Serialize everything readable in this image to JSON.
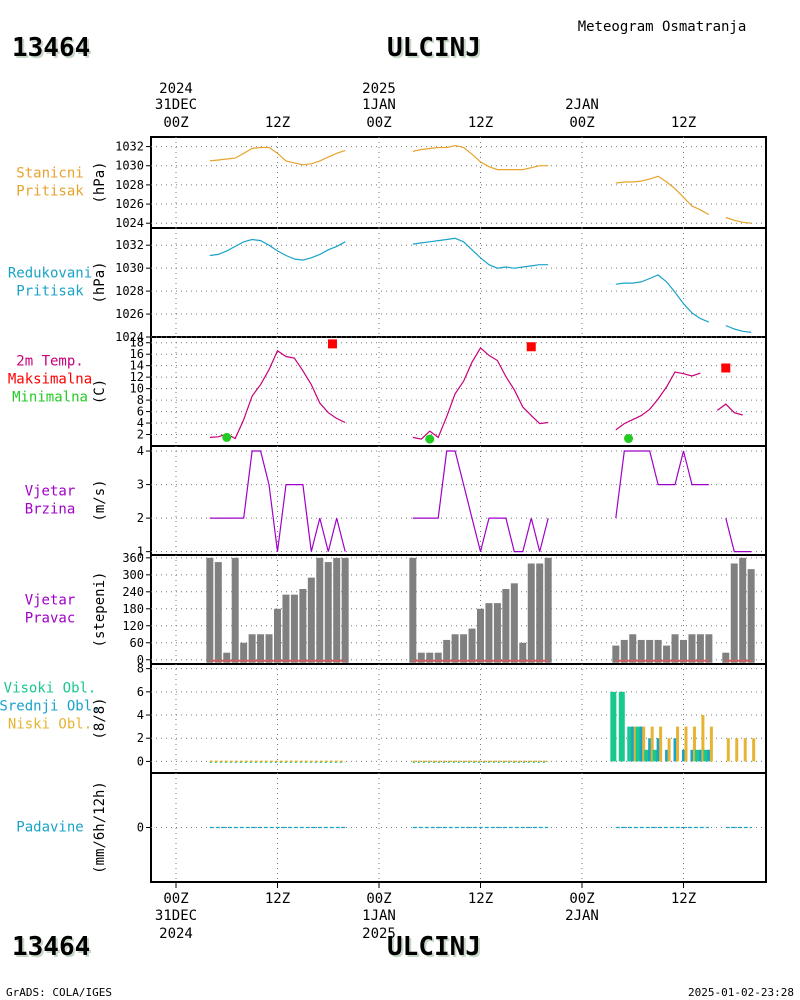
{
  "header": {
    "station_id": "13464",
    "station_name": "ULCINJ",
    "subtitle": "Meteogram Osmatranja"
  },
  "footer": {
    "station_id": "13464",
    "station_name": "ULCINJ",
    "credit": "GrADS: COLA/IGES",
    "timestamp": "2025-01-02-23:28"
  },
  "time_axis": {
    "top_labels": [
      {
        "lines": [
          "2024",
          "31DEC",
          "00Z"
        ],
        "hour": 0
      },
      {
        "lines": [
          "12Z"
        ],
        "hour": 12
      },
      {
        "lines": [
          "2025",
          "1JAN",
          "00Z"
        ],
        "hour": 24
      },
      {
        "lines": [
          "12Z"
        ],
        "hour": 36
      },
      {
        "lines": [
          "2JAN",
          "00Z"
        ],
        "hour": 48
      },
      {
        "lines": [
          "12Z"
        ],
        "hour": 60
      }
    ],
    "bottom_labels": [
      {
        "lines": [
          "00Z",
          "31DEC",
          "2024"
        ],
        "hour": 0
      },
      {
        "lines": [
          "12Z"
        ],
        "hour": 12
      },
      {
        "lines": [
          "00Z",
          "1JAN",
          "2025"
        ],
        "hour": 24
      },
      {
        "lines": [
          "12Z"
        ],
        "hour": 36
      },
      {
        "lines": [
          "00Z",
          "2JAN"
        ],
        "hour": 48
      },
      {
        "lines": [
          "12Z"
        ],
        "hour": 60
      }
    ]
  },
  "colors": {
    "station_pressure": "#e6a32e",
    "reduced_pressure": "#1aa3c8",
    "temperature": "#c8007a",
    "tmax": "#ff0000",
    "tmin": "#22cc22",
    "wind_speed": "#a000c8",
    "wind_dir_bar": "#808080",
    "wind_dir_base": "#d06060",
    "high_cloud": "#19c88c",
    "mid_cloud": "#1aa3c8",
    "low_cloud": "#e6b432",
    "precip": "#1aa3c8"
  },
  "chart_data": [
    {
      "type": "line",
      "panel": "station_pressure",
      "label_lines": [
        "Stanicni",
        "Pritisak"
      ],
      "ylabel": "(hPa)",
      "yticks": [
        1024,
        1026,
        1028,
        1030,
        1032
      ],
      "ylim": [
        1023.5,
        1033
      ],
      "segments": [
        [
          [
            4,
            1030.5
          ],
          [
            5,
            1030.6
          ],
          [
            6,
            1030.7
          ],
          [
            7,
            1030.8
          ],
          [
            8,
            1031.3
          ],
          [
            9,
            1031.8
          ],
          [
            10,
            1031.9
          ],
          [
            11,
            1031.9
          ],
          [
            12,
            1031.3
          ],
          [
            13,
            1030.5
          ],
          [
            14,
            1030.3
          ],
          [
            15,
            1030.1
          ],
          [
            16,
            1030.2
          ],
          [
            17,
            1030.5
          ],
          [
            18,
            1030.9
          ],
          [
            19,
            1031.3
          ],
          [
            20,
            1031.6
          ]
        ],
        [
          [
            28,
            1031.5
          ],
          [
            29,
            1031.7
          ],
          [
            30,
            1031.8
          ],
          [
            31,
            1031.9
          ],
          [
            32,
            1031.9
          ],
          [
            33,
            1032.1
          ],
          [
            34,
            1031.9
          ],
          [
            35,
            1031.2
          ],
          [
            36,
            1030.4
          ],
          [
            37,
            1029.9
          ],
          [
            38,
            1029.6
          ],
          [
            39,
            1029.6
          ],
          [
            40,
            1029.6
          ],
          [
            41,
            1029.6
          ],
          [
            42,
            1029.8
          ],
          [
            43,
            1030.0
          ],
          [
            44,
            1030.0
          ]
        ],
        [
          [
            52,
            1028.2
          ],
          [
            53,
            1028.3
          ],
          [
            54,
            1028.3
          ],
          [
            55,
            1028.4
          ],
          [
            56,
            1028.6
          ],
          [
            57,
            1028.9
          ],
          [
            58,
            1028.3
          ],
          [
            59,
            1027.6
          ],
          [
            60,
            1026.7
          ],
          [
            61,
            1025.8
          ],
          [
            62,
            1025.4
          ],
          [
            63,
            1024.9
          ]
        ],
        [
          [
            65,
            1024.6
          ],
          [
            66,
            1024.3
          ],
          [
            67,
            1024.1
          ],
          [
            68,
            1024.0
          ]
        ]
      ]
    },
    {
      "type": "line",
      "panel": "reduced_pressure",
      "label_lines": [
        "Redukovani",
        "Pritisak"
      ],
      "ylabel": "(hPa)",
      "yticks": [
        1024,
        1026,
        1028,
        1030,
        1032
      ],
      "ylim": [
        1024,
        1033.5
      ],
      "segments": [
        [
          [
            4,
            1031.1
          ],
          [
            5,
            1031.2
          ],
          [
            6,
            1031.5
          ],
          [
            7,
            1031.9
          ],
          [
            8,
            1032.3
          ],
          [
            9,
            1032.5
          ],
          [
            10,
            1032.4
          ],
          [
            11,
            1032.0
          ],
          [
            12,
            1031.5
          ],
          [
            13,
            1031.1
          ],
          [
            14,
            1030.8
          ],
          [
            15,
            1030.7
          ],
          [
            16,
            1030.9
          ],
          [
            17,
            1031.2
          ],
          [
            18,
            1031.6
          ],
          [
            19,
            1031.9
          ],
          [
            20,
            1032.3
          ]
        ],
        [
          [
            28,
            1032.1
          ],
          [
            29,
            1032.2
          ],
          [
            30,
            1032.3
          ],
          [
            31,
            1032.4
          ],
          [
            32,
            1032.5
          ],
          [
            33,
            1032.6
          ],
          [
            34,
            1032.3
          ],
          [
            35,
            1031.6
          ],
          [
            36,
            1030.9
          ],
          [
            37,
            1030.3
          ],
          [
            38,
            1030.0
          ],
          [
            39,
            1030.1
          ],
          [
            40,
            1030.0
          ],
          [
            41,
            1030.1
          ],
          [
            42,
            1030.2
          ],
          [
            43,
            1030.3
          ],
          [
            44,
            1030.3
          ]
        ],
        [
          [
            52,
            1028.6
          ],
          [
            53,
            1028.7
          ],
          [
            54,
            1028.7
          ],
          [
            55,
            1028.8
          ],
          [
            56,
            1029.1
          ],
          [
            57,
            1029.4
          ],
          [
            58,
            1028.8
          ],
          [
            59,
            1027.9
          ],
          [
            60,
            1026.9
          ],
          [
            61,
            1026.1
          ],
          [
            62,
            1025.6
          ],
          [
            63,
            1025.3
          ]
        ],
        [
          [
            65,
            1025.0
          ],
          [
            66,
            1024.7
          ],
          [
            67,
            1024.5
          ],
          [
            68,
            1024.4
          ]
        ]
      ]
    },
    {
      "type": "line",
      "panel": "temperature",
      "label_lines": [
        "2m Temp.",
        "Maksimalna",
        "Minimalna"
      ],
      "ylabel": "(C)",
      "yticks": [
        2,
        4,
        6,
        8,
        10,
        12,
        14,
        16,
        18
      ],
      "ylim": [
        0,
        19
      ],
      "segments": [
        [
          [
            4,
            1.5
          ],
          [
            5,
            1.6
          ],
          [
            6,
            2.1
          ],
          [
            7,
            1.3
          ],
          [
            8,
            4.6
          ],
          [
            9,
            8.7
          ],
          [
            10,
            10.7
          ],
          [
            11,
            13.3
          ],
          [
            12,
            16.6
          ],
          [
            13,
            15.6
          ],
          [
            14,
            15.3
          ],
          [
            15,
            13.1
          ],
          [
            16,
            10.7
          ],
          [
            17,
            7.5
          ],
          [
            18,
            5.8
          ],
          [
            19,
            4.8
          ],
          [
            20,
            4.1
          ]
        ],
        [
          [
            28,
            1.5
          ],
          [
            29,
            1.2
          ],
          [
            30,
            2.6
          ],
          [
            31,
            1.5
          ],
          [
            32,
            5.1
          ],
          [
            33,
            9.1
          ],
          [
            34,
            11.3
          ],
          [
            35,
            14.6
          ],
          [
            36,
            17.1
          ],
          [
            37,
            15.8
          ],
          [
            38,
            14.9
          ],
          [
            39,
            12.1
          ],
          [
            40,
            9.8
          ],
          [
            41,
            6.8
          ],
          [
            42,
            5.3
          ],
          [
            43,
            3.9
          ],
          [
            44,
            4.1
          ]
        ],
        [
          [
            52,
            2.8
          ],
          [
            53,
            3.9
          ],
          [
            54,
            4.6
          ],
          [
            55,
            5.3
          ],
          [
            56,
            6.4
          ],
          [
            57,
            8.2
          ],
          [
            58,
            10.3
          ],
          [
            59,
            12.9
          ],
          [
            60,
            12.6
          ],
          [
            61,
            12.2
          ],
          [
            62,
            12.7
          ]
        ],
        [
          [
            64,
            6.2
          ],
          [
            65,
            7.3
          ],
          [
            66,
            5.8
          ],
          [
            67,
            5.4
          ]
        ]
      ],
      "tmax_points": [
        [
          18.5,
          17.8
        ],
        [
          42,
          17.3
        ],
        [
          65,
          13.6
        ]
      ],
      "tmin_points": [
        [
          6,
          1.5
        ],
        [
          30,
          1.2
        ],
        [
          53.5,
          1.3
        ]
      ]
    },
    {
      "type": "line",
      "panel": "wind_speed",
      "label_lines": [
        "Vjetar",
        "Brzina"
      ],
      "ylabel": "(m/s)",
      "yticks": [
        1,
        2,
        3,
        4
      ],
      "ylim": [
        0.9,
        4.15
      ],
      "segments": [
        [
          [
            4,
            2
          ],
          [
            5,
            2
          ],
          [
            6,
            2
          ],
          [
            7,
            2
          ],
          [
            8,
            2
          ],
          [
            9,
            4
          ],
          [
            10,
            4
          ],
          [
            11,
            3
          ],
          [
            12,
            1
          ],
          [
            13,
            3
          ],
          [
            14,
            3
          ],
          [
            15,
            3
          ],
          [
            16,
            1
          ],
          [
            17,
            2
          ],
          [
            18,
            1
          ],
          [
            19,
            2
          ],
          [
            20,
            1
          ]
        ],
        [
          [
            28,
            2
          ],
          [
            29,
            2
          ],
          [
            30,
            2
          ],
          [
            31,
            2
          ],
          [
            32,
            4
          ],
          [
            33,
            4
          ],
          [
            34,
            3
          ],
          [
            35,
            2
          ],
          [
            36,
            1
          ],
          [
            37,
            2
          ],
          [
            38,
            2
          ],
          [
            39,
            2
          ],
          [
            40,
            1
          ],
          [
            41,
            1
          ],
          [
            42,
            2
          ],
          [
            43,
            1
          ],
          [
            44,
            2
          ]
        ],
        [
          [
            52,
            2
          ],
          [
            53,
            4
          ],
          [
            54,
            4
          ],
          [
            55,
            4
          ],
          [
            56,
            4
          ],
          [
            57,
            3
          ],
          [
            58,
            3
          ],
          [
            59,
            3
          ],
          [
            60,
            4
          ],
          [
            61,
            3
          ],
          [
            62,
            3
          ],
          [
            63,
            3
          ]
        ],
        [
          [
            65,
            2
          ],
          [
            66,
            1
          ],
          [
            67,
            1
          ],
          [
            68,
            1
          ]
        ]
      ]
    },
    {
      "type": "bar",
      "panel": "wind_direction",
      "label_lines": [
        "Vjetar",
        "Pravac"
      ],
      "ylabel": "(stepeni)",
      "yticks": [
        0,
        60,
        120,
        180,
        240,
        300,
        360
      ],
      "ylim": [
        -15,
        370
      ],
      "hours": [
        4,
        5,
        6,
        7,
        8,
        9,
        10,
        11,
        12,
        13,
        14,
        15,
        16,
        17,
        18,
        19,
        20,
        28,
        29,
        30,
        31,
        32,
        33,
        34,
        35,
        36,
        37,
        38,
        39,
        40,
        41,
        42,
        43,
        44,
        52,
        53,
        54,
        55,
        56,
        57,
        58,
        59,
        60,
        61,
        62,
        63,
        65,
        66,
        67,
        68
      ],
      "values": [
        360,
        345,
        25,
        360,
        60,
        90,
        90,
        90,
        180,
        230,
        230,
        250,
        290,
        360,
        345,
        360,
        360,
        360,
        25,
        25,
        25,
        70,
        90,
        90,
        110,
        180,
        200,
        200,
        250,
        270,
        60,
        340,
        340,
        360,
        50,
        70,
        90,
        70,
        70,
        70,
        50,
        90,
        70,
        90,
        90,
        90,
        25,
        340,
        360,
        320
      ]
    },
    {
      "type": "bar",
      "panel": "cloud_cover",
      "label_lines": [
        "Visoki Obl.",
        "Srednji Obl.",
        "Niski Obl."
      ],
      "ylabel": "(8/8)",
      "yticks": [
        0,
        2,
        4,
        6,
        8
      ],
      "ylim": [
        -1,
        8.4
      ],
      "hours": [
        52,
        53,
        54,
        55,
        56,
        57,
        58,
        59,
        60,
        61,
        62,
        63,
        65,
        66,
        67,
        68
      ],
      "series": [
        {
          "name": "Visoki Obl.",
          "values": [
            6,
            6,
            3,
            3,
            1,
            1,
            0,
            0,
            0,
            0,
            1,
            1,
            0,
            0,
            0,
            0
          ]
        },
        {
          "name": "Srednji Obl.",
          "values": [
            0,
            0,
            3,
            3,
            2,
            2,
            1,
            2,
            1,
            1,
            1,
            1,
            0,
            0,
            0,
            0
          ]
        },
        {
          "name": "Niski Obl.",
          "values": [
            0,
            0,
            3,
            3,
            3,
            3,
            2,
            3,
            3,
            3,
            4,
            3,
            2,
            2,
            2,
            2
          ]
        }
      ],
      "zero_hours": [
        [
          4,
          20
        ],
        [
          28,
          44
        ]
      ]
    },
    {
      "type": "line",
      "panel": "precipitation",
      "label_lines": [
        "Padavine"
      ],
      "ylabel": "(mm/6h/12h)",
      "yticks": [
        0
      ],
      "ylim": [
        -5,
        5
      ],
      "segments": [
        [
          [
            4,
            0
          ],
          [
            20,
            0
          ]
        ],
        [
          [
            28,
            0
          ],
          [
            44,
            0
          ]
        ],
        [
          [
            52,
            0
          ],
          [
            63,
            0
          ]
        ],
        [
          [
            65,
            0
          ],
          [
            68,
            0
          ]
        ]
      ]
    }
  ]
}
